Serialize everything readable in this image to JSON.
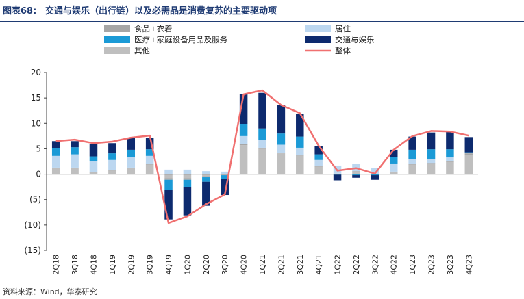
{
  "header": {
    "figure_label": "图表68:",
    "title": "交通与娱乐（出行链）以及必需品是消费复苏的主要驱动项"
  },
  "footer": {
    "source": "资料来源：Wind，华泰研究"
  },
  "chart_data": {
    "type": "bar",
    "stacked": true,
    "categories": [
      "2Q18",
      "3Q18",
      "4Q18",
      "1Q19",
      "2Q19",
      "3Q19",
      "4Q19",
      "1Q20",
      "2Q20",
      "3Q20",
      "4Q20",
      "1Q21",
      "2Q21",
      "3Q21",
      "4Q21",
      "1Q22",
      "2Q22",
      "3Q22",
      "4Q22",
      "1Q23",
      "2Q23",
      "3Q23",
      "4Q23"
    ],
    "ylim": [
      -15,
      20
    ],
    "yticks": [
      20,
      15,
      10,
      5,
      0,
      -5,
      -10,
      -15
    ],
    "ytick_labels": [
      "20",
      "15",
      "10",
      "5",
      "0",
      "(5)",
      "(10)",
      "(15)"
    ],
    "grid": false,
    "legend_position": "top",
    "series": [
      {
        "name": "其他",
        "kind": "bar",
        "color": "#bfbfbf",
        "values": [
          1.2,
          1.2,
          0.3,
          0.7,
          1.2,
          1.9,
          -0.8,
          -0.8,
          -0.4,
          -0.2,
          5.7,
          5.0,
          4.1,
          3.6,
          1.5,
          0.1,
          0.5,
          0.1,
          0.4,
          1.9,
          2.1,
          2.4,
          3.8
        ]
      },
      {
        "name": "食品+衣着",
        "kind": "bar",
        "color": "#a6a6a6",
        "values": [
          0.1,
          0.1,
          0.1,
          0.1,
          0.1,
          0.1,
          -0.3,
          -0.3,
          -0.2,
          0.0,
          0.2,
          0.2,
          0.1,
          0.1,
          0.1,
          0.0,
          0.1,
          0.0,
          0.1,
          0.1,
          0.1,
          0.1,
          0.3
        ]
      },
      {
        "name": "居住",
        "kind": "bar",
        "color": "#bcd7f0",
        "values": [
          2.3,
          2.6,
          2.1,
          2.0,
          2.1,
          1.6,
          0.9,
          0.9,
          0.6,
          0.5,
          1.6,
          1.5,
          1.6,
          1.5,
          1.2,
          1.6,
          1.4,
          1.1,
          1.6,
          1.0,
          0.8,
          0.8,
          0.1
        ]
      },
      {
        "name": "医疗+家庭设备用品及服务",
        "kind": "bar",
        "color": "#1b9ad6",
        "values": [
          1.5,
          1.4,
          1.0,
          1.3,
          1.4,
          1.3,
          -2.0,
          -1.4,
          -0.9,
          -0.7,
          2.4,
          2.3,
          2.2,
          2.2,
          1.1,
          -0.1,
          -0.2,
          -0.2,
          1.3,
          1.8,
          1.9,
          1.6,
          0.1
        ]
      },
      {
        "name": "交通与娱乐",
        "kind": "bar",
        "color": "#0d2a6e",
        "values": [
          1.4,
          1.2,
          2.5,
          2.0,
          2.3,
          2.3,
          -5.8,
          -5.6,
          -4.7,
          -3.2,
          5.8,
          7.0,
          5.6,
          4.4,
          1.6,
          -1.1,
          -0.5,
          -0.9,
          1.4,
          2.6,
          3.3,
          3.4,
          3.0
        ]
      },
      {
        "name": "整体",
        "kind": "line",
        "color": "#f07070",
        "values": [
          6.5,
          6.8,
          6.1,
          6.4,
          7.2,
          7.6,
          -9.6,
          -8.3,
          -5.9,
          -4.0,
          15.7,
          16.5,
          13.6,
          12.0,
          5.6,
          0.7,
          1.2,
          0.1,
          4.8,
          7.5,
          8.5,
          8.4,
          7.6
        ]
      }
    ]
  }
}
